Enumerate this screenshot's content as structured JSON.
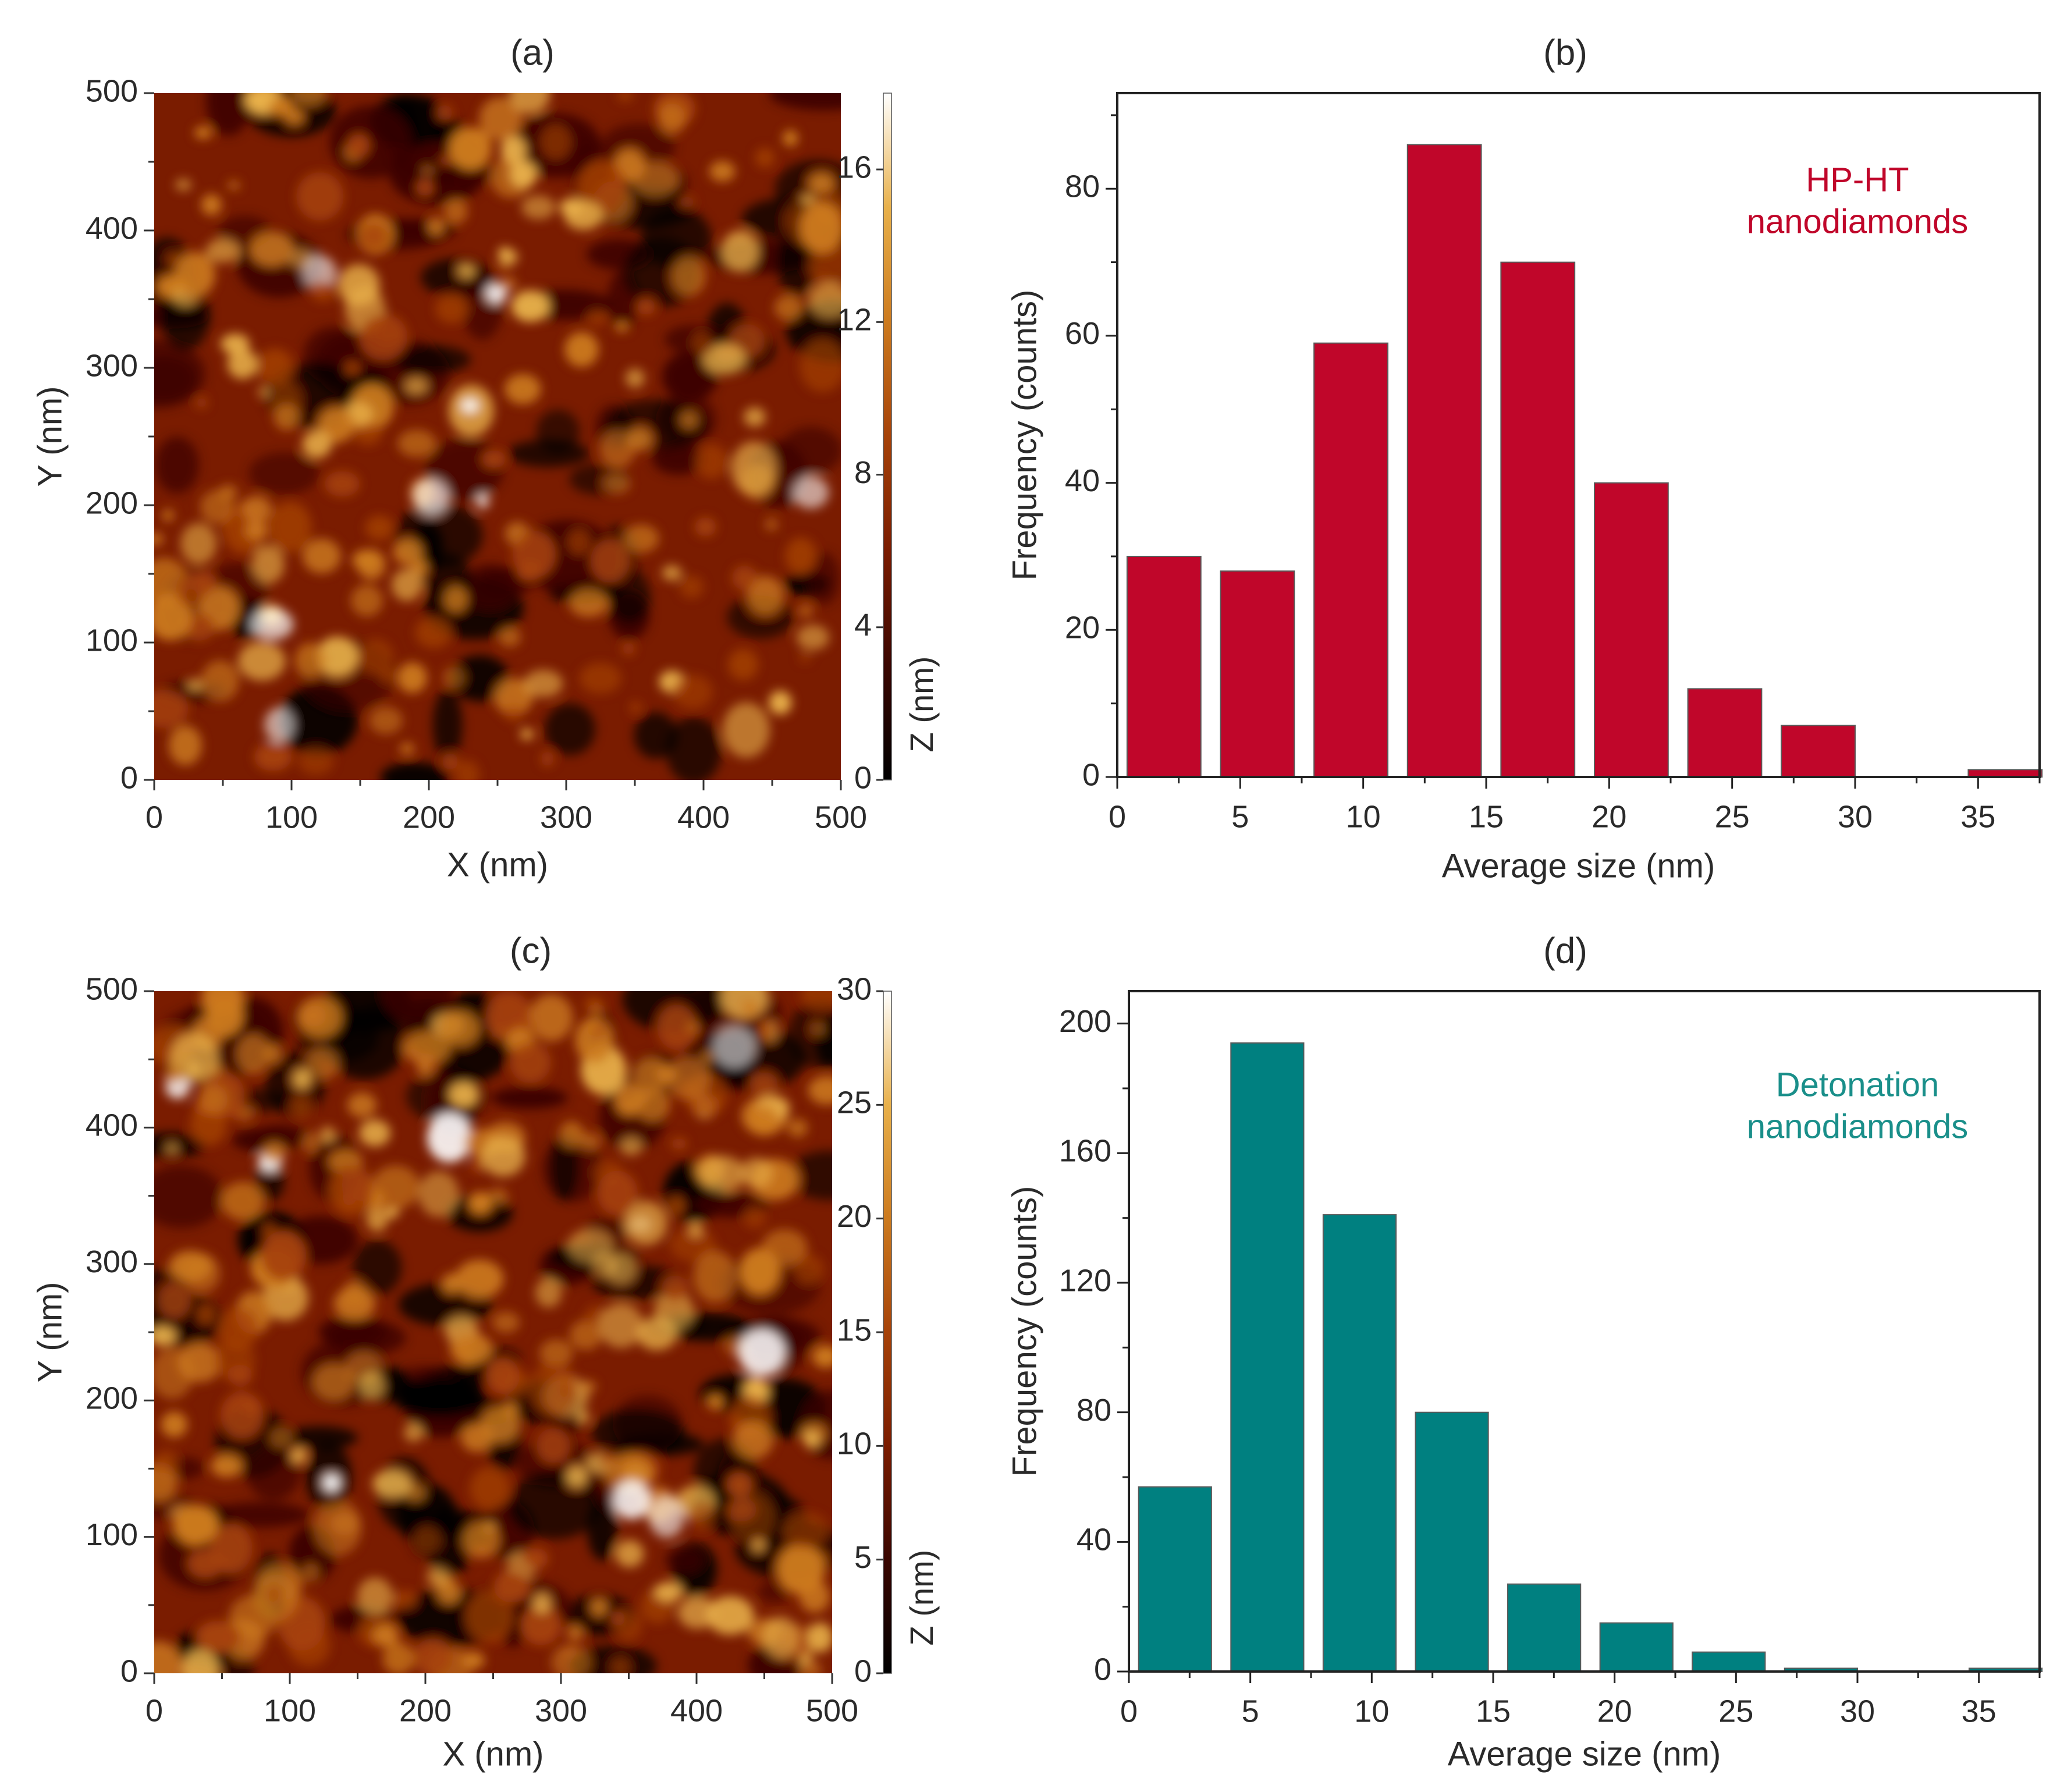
{
  "colors": {
    "hpht_bar": "#c0062a",
    "hpht_label": "#c0062a",
    "det_bar": "#008080",
    "det_label": "#1a8f8a",
    "afm_colormap": [
      "#000000",
      "#3a0600",
      "#7a1c00",
      "#a64208",
      "#cc7a1e",
      "#e8b04a",
      "#ffffff"
    ]
  },
  "chart_data": [
    {
      "panel": "(a)",
      "type": "heatmap",
      "title": "(a)",
      "xlabel": "X (nm)",
      "ylabel": "Y (nm)",
      "xlim": [
        0,
        500
      ],
      "ylim": [
        0,
        500
      ],
      "x_ticks": [
        "0",
        "100",
        "200",
        "300",
        "400",
        "500"
      ],
      "y_ticks": [
        "0",
        "100",
        "200",
        "300",
        "400",
        "500"
      ],
      "colorbar_label": "Z (nm)",
      "colorbar_range": [
        0,
        18
      ],
      "colorbar_ticks": [
        "0",
        "4",
        "8",
        "12",
        "16"
      ],
      "seed": 7,
      "grains": 190
    },
    {
      "panel": "(b)",
      "type": "bar",
      "title": "(b)",
      "xlabel": "Average size (nm)",
      "ylabel": "Frequency (counts)",
      "xlim": [
        0,
        37.5
      ],
      "ylim": [
        0,
        93
      ],
      "x_ticks": [
        "0",
        "5",
        "10",
        "15",
        "20",
        "25",
        "30",
        "35"
      ],
      "y_ticks": [
        "0",
        "20",
        "40",
        "60",
        "80"
      ],
      "legend": [
        "HP-HT",
        "nanodiamonds"
      ],
      "bin_centers": [
        1.9,
        5.7,
        9.5,
        13.3,
        17.1,
        20.9,
        24.7,
        28.5,
        32.3,
        36.1
      ],
      "bin_width": 3.0,
      "values": [
        30,
        28,
        59,
        86,
        70,
        40,
        12,
        7,
        0,
        1
      ]
    },
    {
      "panel": "(c)",
      "type": "heatmap",
      "title": "(c)",
      "xlabel": "X (nm)",
      "ylabel": "Y (nm)",
      "xlim": [
        0,
        500
      ],
      "ylim": [
        0,
        500
      ],
      "x_ticks": [
        "0",
        "100",
        "200",
        "300",
        "400",
        "500"
      ],
      "y_ticks": [
        "0",
        "100",
        "200",
        "300",
        "400",
        "500"
      ],
      "colorbar_label": "Z (nm)",
      "colorbar_range": [
        0,
        30
      ],
      "colorbar_ticks": [
        "0",
        "5",
        "10",
        "15",
        "20",
        "25",
        "30"
      ],
      "seed": 23,
      "grains": 260
    },
    {
      "panel": "(d)",
      "type": "bar",
      "title": "(d)",
      "xlabel": "Average size (nm)",
      "ylabel": "Frequency (counts)",
      "xlim": [
        0,
        37.5
      ],
      "ylim": [
        0,
        210
      ],
      "x_ticks": [
        "0",
        "5",
        "10",
        "15",
        "20",
        "25",
        "30",
        "35"
      ],
      "y_ticks": [
        "0",
        "40",
        "80",
        "120",
        "160",
        "200"
      ],
      "legend": [
        "Detonation",
        "nanodiamonds"
      ],
      "bin_centers": [
        1.9,
        5.7,
        9.5,
        13.3,
        17.1,
        20.9,
        24.7,
        28.5,
        32.3,
        36.1
      ],
      "bin_width": 3.0,
      "values": [
        57,
        194,
        141,
        80,
        27,
        15,
        6,
        1,
        0,
        1
      ]
    }
  ]
}
